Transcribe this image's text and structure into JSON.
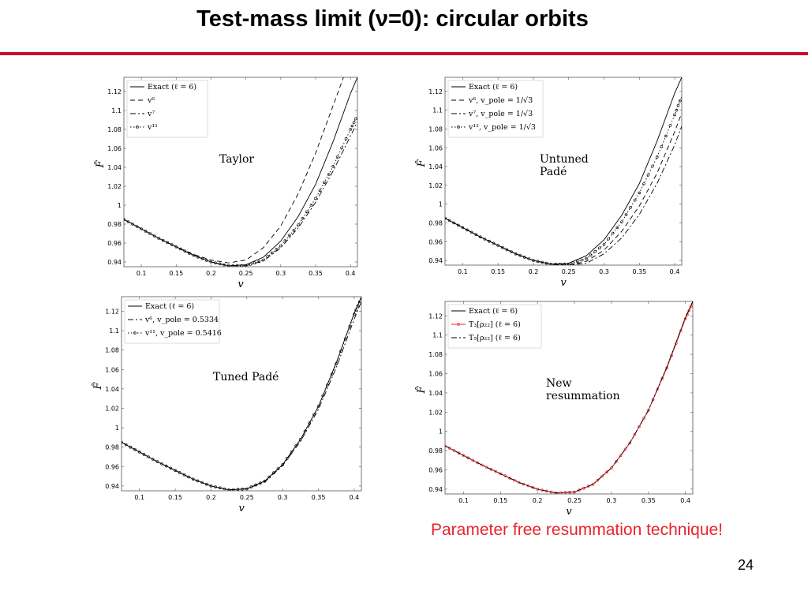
{
  "slide": {
    "title": "Test-mass limit (ν=0): circular orbits",
    "caption": "Parameter free resummation technique!",
    "page_number": "24"
  },
  "chart_data": [
    {
      "type": "line",
      "annotation": "Taylor",
      "xlabel": "v",
      "ylabel": "F̂",
      "xlim": [
        0.075,
        0.41
      ],
      "ylim": [
        0.935,
        1.135
      ],
      "xticks": [
        "0.1",
        "0.15",
        "0.2",
        "0.25",
        "0.3",
        "0.35",
        "0.4"
      ],
      "yticks": [
        "0.94",
        "0.96",
        "0.98",
        "1",
        "1.02",
        "1.04",
        "1.06",
        "1.08",
        "1.1",
        "1.12"
      ],
      "legend_position": "top-left",
      "series": [
        {
          "name": "Exact (ℓ = 6)",
          "style": "solid",
          "color": "#000000",
          "markers": false,
          "x": [
            0.075,
            0.1,
            0.125,
            0.15,
            0.175,
            0.2,
            0.225,
            0.25,
            0.275,
            0.3,
            0.325,
            0.35,
            0.375,
            0.4,
            0.41
          ],
          "y": [
            0.985,
            0.975,
            0.965,
            0.956,
            0.947,
            0.94,
            0.936,
            0.937,
            0.945,
            0.962,
            0.988,
            1.022,
            1.067,
            1.118,
            1.135
          ]
        },
        {
          "name": "v⁶",
          "style": "dashed",
          "color": "#000000",
          "markers": false,
          "x": [
            0.075,
            0.1,
            0.125,
            0.15,
            0.175,
            0.2,
            0.225,
            0.25,
            0.275,
            0.3,
            0.325,
            0.35,
            0.375,
            0.39
          ],
          "y": [
            0.985,
            0.975,
            0.965,
            0.956,
            0.948,
            0.942,
            0.939,
            0.942,
            0.955,
            0.978,
            1.012,
            1.055,
            1.105,
            1.135
          ]
        },
        {
          "name": "v⁷",
          "style": "dashdot",
          "color": "#000000",
          "markers": false,
          "x": [
            0.075,
            0.1,
            0.125,
            0.15,
            0.175,
            0.2,
            0.225,
            0.25,
            0.275,
            0.3,
            0.325,
            0.35,
            0.375,
            0.4,
            0.41
          ],
          "y": [
            0.985,
            0.975,
            0.965,
            0.956,
            0.947,
            0.94,
            0.936,
            0.936,
            0.941,
            0.955,
            0.976,
            1.003,
            1.036,
            1.073,
            1.088
          ]
        },
        {
          "name": "v¹¹",
          "style": "dotted-markers",
          "color": "#000000",
          "markers": true,
          "x": [
            0.075,
            0.1,
            0.125,
            0.15,
            0.175,
            0.2,
            0.225,
            0.25,
            0.275,
            0.3,
            0.325,
            0.35,
            0.375,
            0.4,
            0.41
          ],
          "y": [
            0.985,
            0.975,
            0.965,
            0.956,
            0.947,
            0.94,
            0.936,
            0.936,
            0.942,
            0.957,
            0.979,
            1.007,
            1.041,
            1.08,
            1.095
          ]
        }
      ]
    },
    {
      "type": "line",
      "annotation": "Untuned\nPadé",
      "xlabel": "v",
      "ylabel": "F̂",
      "xlim": [
        0.075,
        0.41
      ],
      "ylim": [
        0.935,
        1.135
      ],
      "xticks": [
        "0.1",
        "0.15",
        "0.2",
        "0.25",
        "0.3",
        "0.35",
        "0.4"
      ],
      "yticks": [
        "0.94",
        "0.96",
        "0.98",
        "1",
        "1.02",
        "1.04",
        "1.06",
        "1.08",
        "1.1",
        "1.12"
      ],
      "legend_position": "top-left",
      "series": [
        {
          "name": "Exact (ℓ = 6)",
          "style": "solid",
          "color": "#000000",
          "markers": false,
          "x": [
            0.075,
            0.1,
            0.125,
            0.15,
            0.175,
            0.2,
            0.225,
            0.25,
            0.275,
            0.3,
            0.325,
            0.35,
            0.375,
            0.4,
            0.41
          ],
          "y": [
            0.985,
            0.975,
            0.965,
            0.956,
            0.947,
            0.94,
            0.936,
            0.937,
            0.945,
            0.962,
            0.988,
            1.022,
            1.067,
            1.118,
            1.135
          ]
        },
        {
          "name": "v⁶, v_pole = 1/√3",
          "style": "dashed",
          "color": "#000000",
          "markers": false,
          "x": [
            0.075,
            0.1,
            0.125,
            0.15,
            0.175,
            0.2,
            0.225,
            0.25,
            0.275,
            0.3,
            0.325,
            0.35,
            0.375,
            0.4,
            0.41
          ],
          "y": [
            0.985,
            0.975,
            0.965,
            0.956,
            0.947,
            0.94,
            0.936,
            0.935,
            0.939,
            0.951,
            0.971,
            0.998,
            1.033,
            1.077,
            1.097
          ]
        },
        {
          "name": "v⁷, v_pole = 1/√3",
          "style": "dashdot",
          "color": "#000000",
          "markers": false,
          "x": [
            0.075,
            0.1,
            0.125,
            0.15,
            0.175,
            0.2,
            0.225,
            0.25,
            0.275,
            0.3,
            0.325,
            0.35,
            0.375,
            0.4,
            0.41
          ],
          "y": [
            0.985,
            0.975,
            0.965,
            0.956,
            0.947,
            0.94,
            0.936,
            0.935,
            0.937,
            0.947,
            0.964,
            0.989,
            1.022,
            1.063,
            1.083
          ]
        },
        {
          "name": "v¹¹, v_pole = 1/√3",
          "style": "dotted-markers",
          "color": "#000000",
          "markers": true,
          "x": [
            0.075,
            0.1,
            0.125,
            0.15,
            0.175,
            0.2,
            0.225,
            0.25,
            0.275,
            0.3,
            0.325,
            0.35,
            0.375,
            0.4,
            0.41
          ],
          "y": [
            0.985,
            0.975,
            0.965,
            0.956,
            0.947,
            0.94,
            0.936,
            0.936,
            0.942,
            0.957,
            0.981,
            1.012,
            1.05,
            1.095,
            1.115
          ]
        }
      ]
    },
    {
      "type": "line",
      "annotation": "Tuned Padé",
      "xlabel": "v",
      "ylabel": "F̂",
      "xlim": [
        0.075,
        0.41
      ],
      "ylim": [
        0.935,
        1.135
      ],
      "xticks": [
        "0.1",
        "0.15",
        "0.2",
        "0.25",
        "0.3",
        "0.35",
        "0.4"
      ],
      "yticks": [
        "0.94",
        "0.96",
        "0.98",
        "1",
        "1.02",
        "1.04",
        "1.06",
        "1.08",
        "1.1",
        "1.12"
      ],
      "legend_position": "top-left",
      "series": [
        {
          "name": "Exact (ℓ = 6)",
          "style": "solid",
          "color": "#000000",
          "markers": false,
          "x": [
            0.075,
            0.1,
            0.125,
            0.15,
            0.175,
            0.2,
            0.225,
            0.25,
            0.275,
            0.3,
            0.325,
            0.35,
            0.375,
            0.4,
            0.41
          ],
          "y": [
            0.985,
            0.975,
            0.965,
            0.956,
            0.947,
            0.94,
            0.936,
            0.937,
            0.945,
            0.962,
            0.988,
            1.022,
            1.067,
            1.118,
            1.135
          ]
        },
        {
          "name": "v⁶, v_pole = 0.5334",
          "style": "dashdot",
          "color": "#000000",
          "markers": false,
          "x": [
            0.075,
            0.1,
            0.125,
            0.15,
            0.175,
            0.2,
            0.225,
            0.25,
            0.275,
            0.3,
            0.325,
            0.35,
            0.375,
            0.4,
            0.41
          ],
          "y": [
            0.985,
            0.975,
            0.965,
            0.956,
            0.947,
            0.94,
            0.936,
            0.937,
            0.944,
            0.961,
            0.986,
            1.019,
            1.062,
            1.112,
            1.13
          ]
        },
        {
          "name": "v¹¹, v_pole = 0.5416",
          "style": "dotted-markers",
          "color": "#000000",
          "markers": true,
          "x": [
            0.075,
            0.1,
            0.125,
            0.15,
            0.175,
            0.2,
            0.225,
            0.25,
            0.275,
            0.3,
            0.325,
            0.35,
            0.375,
            0.4,
            0.41
          ],
          "y": [
            0.985,
            0.975,
            0.965,
            0.956,
            0.947,
            0.94,
            0.936,
            0.937,
            0.945,
            0.962,
            0.988,
            1.022,
            1.066,
            1.117,
            1.134
          ]
        }
      ]
    },
    {
      "type": "line",
      "annotation": "New\nresummation",
      "xlabel": "v",
      "ylabel": "F̂",
      "xlim": [
        0.075,
        0.41
      ],
      "ylim": [
        0.935,
        1.135
      ],
      "xticks": [
        "0.1",
        "0.15",
        "0.2",
        "0.25",
        "0.3",
        "0.35",
        "0.4"
      ],
      "yticks": [
        "0.94",
        "0.96",
        "0.98",
        "1",
        "1.02",
        "1.04",
        "1.06",
        "1.08",
        "1.1",
        "1.12"
      ],
      "legend_position": "top-left",
      "series": [
        {
          "name": "Exact (ℓ = 6)",
          "style": "solid",
          "color": "#000000",
          "markers": false,
          "x": [
            0.075,
            0.1,
            0.125,
            0.15,
            0.175,
            0.2,
            0.225,
            0.25,
            0.275,
            0.3,
            0.325,
            0.35,
            0.375,
            0.4,
            0.41
          ],
          "y": [
            0.985,
            0.975,
            0.965,
            0.956,
            0.947,
            0.94,
            0.936,
            0.937,
            0.945,
            0.962,
            0.988,
            1.022,
            1.067,
            1.118,
            1.135
          ]
        },
        {
          "name": "T₃[ρ₂₂] (ℓ = 6)",
          "style": "solid-markers",
          "color": "#e8242a",
          "markers": true,
          "x": [
            0.075,
            0.1,
            0.125,
            0.15,
            0.175,
            0.2,
            0.225,
            0.25,
            0.275,
            0.3,
            0.325,
            0.35,
            0.375,
            0.4,
            0.41
          ],
          "y": [
            0.985,
            0.975,
            0.965,
            0.956,
            0.947,
            0.94,
            0.936,
            0.937,
            0.945,
            0.962,
            0.988,
            1.022,
            1.066,
            1.117,
            1.134
          ]
        },
        {
          "name": "T₅[ρ₂₂] (ℓ = 6)",
          "style": "dashdot",
          "color": "#000000",
          "markers": false,
          "x": [
            0.075,
            0.1,
            0.125,
            0.15,
            0.175,
            0.2,
            0.225,
            0.25,
            0.275,
            0.3,
            0.325,
            0.35,
            0.375,
            0.4,
            0.41
          ],
          "y": [
            0.985,
            0.975,
            0.965,
            0.956,
            0.947,
            0.94,
            0.936,
            0.937,
            0.945,
            0.962,
            0.988,
            1.022,
            1.067,
            1.118,
            1.135
          ]
        }
      ]
    }
  ]
}
